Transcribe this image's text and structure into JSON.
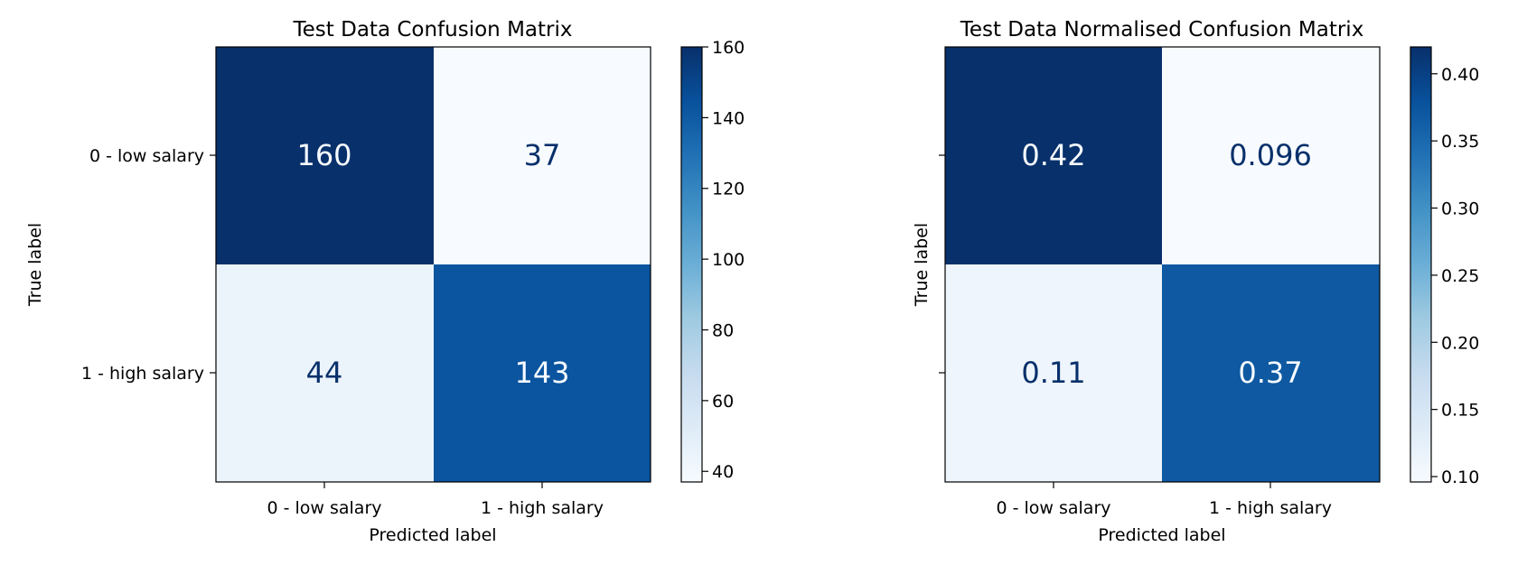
{
  "chart_data": [
    {
      "type": "heatmap",
      "title": "Test Data Confusion Matrix",
      "xlabel": "Predicted label",
      "ylabel": "True label",
      "x_categories": [
        "0 - low salary",
        "1 - high salary"
      ],
      "y_categories": [
        "0 - low salary",
        "1 - high salary"
      ],
      "values": [
        [
          160,
          37
        ],
        [
          44,
          143
        ]
      ],
      "cell_labels": [
        [
          "160",
          "37"
        ],
        [
          "44",
          "143"
        ]
      ],
      "colorbar": {
        "range": [
          37,
          160
        ],
        "ticks": [
          40,
          60,
          80,
          100,
          120,
          140,
          160
        ],
        "tick_labels": [
          "40",
          "60",
          "80",
          "100",
          "120",
          "140",
          "160"
        ]
      },
      "colormap": "Blues"
    },
    {
      "type": "heatmap",
      "title": "Test Data Normalised Confusion Matrix",
      "xlabel": "Predicted label",
      "ylabel": "True label",
      "x_categories": [
        "0 - low salary",
        "1 - high salary"
      ],
      "y_categories": [
        "",
        ""
      ],
      "values": [
        [
          0.42,
          0.096
        ],
        [
          0.11,
          0.37
        ]
      ],
      "cell_labels": [
        [
          "0.42",
          "0.096"
        ],
        [
          "0.11",
          "0.37"
        ]
      ],
      "colorbar": {
        "range": [
          0.096,
          0.42
        ],
        "ticks": [
          0.1,
          0.15,
          0.2,
          0.25,
          0.3,
          0.35,
          0.4
        ],
        "tick_labels": [
          "0.10",
          "0.15",
          "0.20",
          "0.25",
          "0.30",
          "0.35",
          "0.40"
        ]
      },
      "colormap": "Blues"
    }
  ]
}
